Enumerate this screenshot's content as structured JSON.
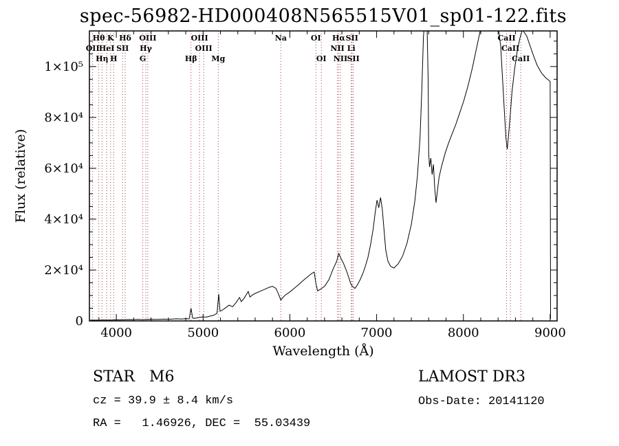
{
  "title": "spec-56982-HD000408N565515V01_sp01-122.fits",
  "footer": {
    "class_label": "STAR   M6",
    "survey": "LAMOST DR3",
    "cz": "cz = 39.9 ± 8.4 km/s",
    "radec": "RA =   1.46926, DEC =  55.03439",
    "obs_date": "Obs-Date: 20141120"
  },
  "chart_data": {
    "type": "line",
    "title": "spec-56982-HD000408N565515V01_sp01-122.fits",
    "xlabel": "Wavelength (Å)",
    "ylabel": "Flux (relative)",
    "xlim": [
      3690,
      9080
    ],
    "ylim": [
      0,
      114000
    ],
    "grid": false,
    "legend": "none",
    "line_color": "#000000",
    "marker_color": "#9e3a3a",
    "xticks": [
      {
        "v": 4000,
        "label": "4000"
      },
      {
        "v": 5000,
        "label": "5000"
      },
      {
        "v": 6000,
        "label": "6000"
      },
      {
        "v": 7000,
        "label": "7000"
      },
      {
        "v": 8000,
        "label": "8000"
      },
      {
        "v": 9000,
        "label": "9000"
      }
    ],
    "yticks": [
      {
        "v": 0,
        "label": "0"
      },
      {
        "v": 20000,
        "label": "2×10⁴"
      },
      {
        "v": 40000,
        "label": "4×10⁴"
      },
      {
        "v": 60000,
        "label": "6×10⁴"
      },
      {
        "v": 80000,
        "label": "8×10⁴"
      },
      {
        "v": 100000,
        "label": "1×10⁵"
      }
    ],
    "x_minor_step": 200,
    "y_minor_step": 5000,
    "spectral_lines": [
      {
        "label": "OII",
        "wl": 3727,
        "row": 2
      },
      {
        "label": "Hθ",
        "wl": 3798,
        "row": 1
      },
      {
        "label": "Hη",
        "wl": 3835,
        "row": 3
      },
      {
        "label": "HeI",
        "wl": 3889,
        "row": 2
      },
      {
        "label": "K",
        "wl": 3934,
        "row": 1
      },
      {
        "label": "H",
        "wl": 3970,
        "row": 3
      },
      {
        "label": "SII",
        "wl": 4072,
        "row": 2
      },
      {
        "label": "Hδ",
        "wl": 4102,
        "row": 1
      },
      {
        "label": "G",
        "wl": 4305,
        "row": 3
      },
      {
        "label": "Hγ",
        "wl": 4340,
        "row": 2
      },
      {
        "label": "OIII",
        "wl": 4363,
        "row": 1
      },
      {
        "label": "Hβ",
        "wl": 4861,
        "row": 3
      },
      {
        "label": "OIII",
        "wl": 4959,
        "row": 1
      },
      {
        "label": "OIII",
        "wl": 5007,
        "row": 2
      },
      {
        "label": "Mg",
        "wl": 5175,
        "row": 3
      },
      {
        "label": "Na",
        "wl": 5896,
        "row": 1
      },
      {
        "label": "OI",
        "wl": 6300,
        "row": 1
      },
      {
        "label": "OI",
        "wl": 6363,
        "row": 3
      },
      {
        "label": "NII",
        "wl": 6548,
        "row": 2
      },
      {
        "label": "Hα",
        "wl": 6563,
        "row": 1
      },
      {
        "label": "NII",
        "wl": 6583,
        "row": 3
      },
      {
        "label": "Li",
        "wl": 6708,
        "row": 2
      },
      {
        "label": "SII",
        "wl": 6716,
        "row": 1
      },
      {
        "label": "SII",
        "wl": 6731,
        "row": 3
      },
      {
        "label": "CaII",
        "wl": 8498,
        "row": 1
      },
      {
        "label": "CaII",
        "wl": 8542,
        "row": 2
      },
      {
        "label": "CaII",
        "wl": 8662,
        "row": 3
      }
    ],
    "points": [
      [
        3700,
        400
      ],
      [
        3720,
        300
      ],
      [
        3740,
        350
      ],
      [
        3760,
        300
      ],
      [
        3780,
        350
      ],
      [
        3800,
        300
      ],
      [
        3820,
        350
      ],
      [
        3840,
        400
      ],
      [
        3860,
        350
      ],
      [
        3880,
        400
      ],
      [
        3900,
        350
      ],
      [
        3920,
        400
      ],
      [
        3940,
        350
      ],
      [
        3960,
        400
      ],
      [
        3980,
        450
      ],
      [
        4000,
        400
      ],
      [
        4020,
        450
      ],
      [
        4040,
        400
      ],
      [
        4060,
        500
      ],
      [
        4080,
        450
      ],
      [
        4100,
        500
      ],
      [
        4150,
        550
      ],
      [
        4200,
        500
      ],
      [
        4250,
        600
      ],
      [
        4300,
        500
      ],
      [
        4350,
        600
      ],
      [
        4400,
        650
      ],
      [
        4450,
        600
      ],
      [
        4500,
        650
      ],
      [
        4550,
        700
      ],
      [
        4600,
        650
      ],
      [
        4650,
        750
      ],
      [
        4700,
        850
      ],
      [
        4750,
        750
      ],
      [
        4800,
        900
      ],
      [
        4840,
        800
      ],
      [
        4861,
        5000
      ],
      [
        4880,
        1100
      ],
      [
        4900,
        1000
      ],
      [
        4930,
        1200
      ],
      [
        4960,
        1400
      ],
      [
        5000,
        1600
      ],
      [
        5040,
        1500
      ],
      [
        5080,
        1900
      ],
      [
        5120,
        2200
      ],
      [
        5160,
        3000
      ],
      [
        5180,
        10500
      ],
      [
        5195,
        3800
      ],
      [
        5220,
        4200
      ],
      [
        5260,
        5200
      ],
      [
        5300,
        6200
      ],
      [
        5340,
        5600
      ],
      [
        5380,
        7200
      ],
      [
        5420,
        9200
      ],
      [
        5440,
        7600
      ],
      [
        5470,
        8800
      ],
      [
        5500,
        10400
      ],
      [
        5520,
        11600
      ],
      [
        5540,
        9400
      ],
      [
        5570,
        10200
      ],
      [
        5600,
        10800
      ],
      [
        5640,
        11400
      ],
      [
        5680,
        12000
      ],
      [
        5720,
        12600
      ],
      [
        5760,
        13200
      ],
      [
        5800,
        13600
      ],
      [
        5840,
        12800
      ],
      [
        5870,
        10500
      ],
      [
        5896,
        8200
      ],
      [
        5920,
        9200
      ],
      [
        5950,
        10200
      ],
      [
        6000,
        11400
      ],
      [
        6050,
        12800
      ],
      [
        6100,
        14200
      ],
      [
        6150,
        15800
      ],
      [
        6200,
        17200
      ],
      [
        6250,
        18600
      ],
      [
        6280,
        19200
      ],
      [
        6300,
        14800
      ],
      [
        6320,
        11800
      ],
      [
        6350,
        12400
      ],
      [
        6400,
        13600
      ],
      [
        6450,
        16200
      ],
      [
        6500,
        20500
      ],
      [
        6540,
        23500
      ],
      [
        6563,
        26500
      ],
      [
        6590,
        24500
      ],
      [
        6620,
        22500
      ],
      [
        6650,
        20000
      ],
      [
        6680,
        17000
      ],
      [
        6700,
        14800
      ],
      [
        6720,
        13600
      ],
      [
        6750,
        12800
      ],
      [
        6780,
        14200
      ],
      [
        6810,
        16200
      ],
      [
        6840,
        18500
      ],
      [
        6870,
        21500
      ],
      [
        6900,
        25000
      ],
      [
        6930,
        30000
      ],
      [
        6960,
        36000
      ],
      [
        6985,
        43000
      ],
      [
        7005,
        47500
      ],
      [
        7025,
        44500
      ],
      [
        7045,
        48500
      ],
      [
        7065,
        44000
      ],
      [
        7085,
        36000
      ],
      [
        7105,
        28000
      ],
      [
        7130,
        23500
      ],
      [
        7160,
        21500
      ],
      [
        7200,
        20800
      ],
      [
        7250,
        22500
      ],
      [
        7300,
        25500
      ],
      [
        7350,
        30500
      ],
      [
        7400,
        38000
      ],
      [
        7440,
        47000
      ],
      [
        7470,
        57000
      ],
      [
        7500,
        72000
      ],
      [
        7520,
        90000
      ],
      [
        7540,
        112000
      ],
      [
        7555,
        118000
      ],
      [
        7580,
        118000
      ],
      [
        7594,
        95000
      ],
      [
        7600,
        66000
      ],
      [
        7610,
        60500
      ],
      [
        7625,
        64000
      ],
      [
        7640,
        57500
      ],
      [
        7655,
        61500
      ],
      [
        7670,
        52000
      ],
      [
        7685,
        46500
      ],
      [
        7700,
        51000
      ],
      [
        7720,
        56500
      ],
      [
        7750,
        61000
      ],
      [
        7790,
        66000
      ],
      [
        7830,
        70000
      ],
      [
        7870,
        73500
      ],
      [
        7910,
        77000
      ],
      [
        7950,
        81000
      ],
      [
        8000,
        86000
      ],
      [
        8050,
        92000
      ],
      [
        8100,
        99000
      ],
      [
        8150,
        107000
      ],
      [
        8200,
        115000
      ],
      [
        8250,
        118000
      ],
      [
        8300,
        118000
      ],
      [
        8350,
        118000
      ],
      [
        8400,
        116000
      ],
      [
        8430,
        108000
      ],
      [
        8450,
        96000
      ],
      [
        8470,
        84000
      ],
      [
        8490,
        72000
      ],
      [
        8505,
        67500
      ],
      [
        8520,
        73000
      ],
      [
        8540,
        81000
      ],
      [
        8560,
        90000
      ],
      [
        8590,
        99000
      ],
      [
        8620,
        106000
      ],
      [
        8650,
        111000
      ],
      [
        8680,
        114500
      ],
      [
        8700,
        113500
      ],
      [
        8730,
        112000
      ],
      [
        8760,
        109000
      ],
      [
        8800,
        105000
      ],
      [
        8850,
        100500
      ],
      [
        8900,
        97500
      ],
      [
        8950,
        95500
      ],
      [
        8990,
        94500
      ],
      [
        9000,
        94000
      ],
      [
        9005,
        800
      ]
    ]
  }
}
